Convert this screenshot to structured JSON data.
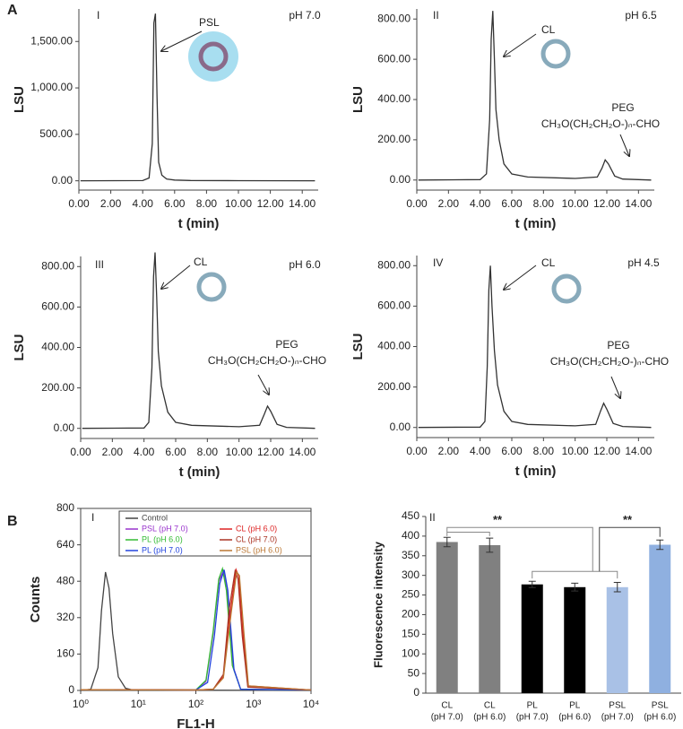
{
  "chart_data": [
    {
      "type": "line",
      "panel_label": "A",
      "panel": "I",
      "condition": "pH 7.0",
      "peak_label": "PSL",
      "y_label": "LSU",
      "x_label": "t (min)",
      "xlim": [
        0,
        15
      ],
      "ylim": [
        -100,
        1850
      ],
      "xticks": [
        {
          "value": 0,
          "label": "0.00"
        },
        {
          "value": 2,
          "label": "2.00"
        },
        {
          "value": 4,
          "label": "4.00"
        },
        {
          "value": 6,
          "label": "6.00"
        },
        {
          "value": 8,
          "label": "8.00"
        },
        {
          "value": 10,
          "label": "10.00"
        },
        {
          "value": 12,
          "label": "12.00"
        },
        {
          "value": 14,
          "label": "14.00"
        }
      ],
      "yticks": [
        {
          "value": 0,
          "label": "0.00"
        },
        {
          "value": 500,
          "label": "500.00"
        },
        {
          "value": 1000,
          "label": "1,000.00"
        },
        {
          "value": 1500,
          "label": "1,500.00"
        }
      ],
      "color": "#333333",
      "x": [
        0.1,
        4.0,
        4.4,
        4.6,
        4.7,
        4.8,
        4.9,
        5.0,
        5.2,
        5.5,
        6.0,
        7.0,
        10.0,
        14.8
      ],
      "values": [
        0,
        2,
        30,
        400,
        1700,
        1800,
        900,
        200,
        60,
        20,
        8,
        3,
        1,
        0
      ]
    },
    {
      "type": "line",
      "panel": "II",
      "condition": "pH 6.5",
      "peak_label": "CL",
      "peg_label": "PEG",
      "formula": "CH₃O(CH₂CH₂O-)ₙ-CHO",
      "y_label": "LSU",
      "x_label": "t (min)",
      "xlim": [
        0,
        15
      ],
      "ylim": [
        -50,
        850
      ],
      "xticks": [
        {
          "value": 0,
          "label": "0.00"
        },
        {
          "value": 2,
          "label": "2.00"
        },
        {
          "value": 4,
          "label": "4.00"
        },
        {
          "value": 6,
          "label": "6.00"
        },
        {
          "value": 8,
          "label": "8.00"
        },
        {
          "value": 10,
          "label": "10.00"
        },
        {
          "value": 12,
          "label": "12.00"
        },
        {
          "value": 14,
          "label": "14.00"
        }
      ],
      "yticks": [
        {
          "value": 0,
          "label": "0.00"
        },
        {
          "value": 200,
          "label": "200.00"
        },
        {
          "value": 400,
          "label": "400.00"
        },
        {
          "value": 600,
          "label": "600.00"
        },
        {
          "value": 800,
          "label": "800.00"
        }
      ],
      "color": "#333333",
      "x": [
        0.1,
        4.0,
        4.4,
        4.6,
        4.7,
        4.8,
        4.9,
        5.0,
        5.2,
        5.5,
        6.0,
        7.0,
        10.0,
        11.4,
        11.7,
        11.9,
        12.1,
        12.5,
        13.0,
        14.8
      ],
      "values": [
        0,
        2,
        30,
        300,
        700,
        840,
        600,
        350,
        200,
        80,
        30,
        15,
        8,
        15,
        60,
        100,
        80,
        20,
        5,
        0
      ]
    },
    {
      "type": "line",
      "panel": "III",
      "condition": "pH 6.0",
      "peak_label": "CL",
      "peg_label": "PEG",
      "formula": "CH₃O(CH₂CH₂O-)ₙ-CHO",
      "y_label": "LSU",
      "x_label": "t (min)",
      "xlim": [
        0,
        15
      ],
      "ylim": [
        -50,
        850
      ],
      "xticks": [
        {
          "value": 0,
          "label": "0.00"
        },
        {
          "value": 2,
          "label": "2.00"
        },
        {
          "value": 4,
          "label": "4.00"
        },
        {
          "value": 6,
          "label": "6.00"
        },
        {
          "value": 8,
          "label": "8.00"
        },
        {
          "value": 10,
          "label": "10.00"
        },
        {
          "value": 12,
          "label": "12.00"
        },
        {
          "value": 14,
          "label": "14.00"
        }
      ],
      "yticks": [
        {
          "value": 0,
          "label": "0.00"
        },
        {
          "value": 200,
          "label": "200.00"
        },
        {
          "value": 400,
          "label": "400.00"
        },
        {
          "value": 600,
          "label": "600.00"
        },
        {
          "value": 800,
          "label": "800.00"
        }
      ],
      "color": "#333333",
      "x": [
        0.1,
        4.0,
        4.3,
        4.5,
        4.6,
        4.7,
        4.8,
        4.9,
        5.1,
        5.5,
        6.0,
        7.0,
        10.0,
        11.3,
        11.6,
        11.8,
        12.0,
        12.4,
        13.0,
        14.8
      ],
      "values": [
        0,
        2,
        30,
        300,
        750,
        870,
        650,
        380,
        210,
        80,
        30,
        15,
        8,
        15,
        70,
        110,
        85,
        20,
        5,
        0
      ]
    },
    {
      "type": "line",
      "panel": "IV",
      "condition": "pH 4.5",
      "peak_label": "CL",
      "peg_label": "PEG",
      "formula": "CH₃O(CH₂CH₂O-)ₙ-CHO",
      "y_label": "LSU",
      "x_label": "t (min)",
      "xlim": [
        0,
        15
      ],
      "ylim": [
        -50,
        850
      ],
      "xticks": [
        {
          "value": 0,
          "label": "0.00"
        },
        {
          "value": 2,
          "label": "2.00"
        },
        {
          "value": 4,
          "label": "4.00"
        },
        {
          "value": 6,
          "label": "6.00"
        },
        {
          "value": 8,
          "label": "8.00"
        },
        {
          "value": 10,
          "label": "10.00"
        },
        {
          "value": 12,
          "label": "12.00"
        },
        {
          "value": 14,
          "label": "14.00"
        }
      ],
      "yticks": [
        {
          "value": 0,
          "label": "0.00"
        },
        {
          "value": 200,
          "label": "200.00"
        },
        {
          "value": 400,
          "label": "400.00"
        },
        {
          "value": 600,
          "label": "600.00"
        },
        {
          "value": 800,
          "label": "800.00"
        }
      ],
      "color": "#333333",
      "x": [
        0.1,
        4.0,
        4.3,
        4.45,
        4.55,
        4.65,
        4.75,
        4.9,
        5.1,
        5.5,
        6.0,
        7.0,
        10.0,
        11.3,
        11.6,
        11.8,
        12.0,
        12.4,
        13.0,
        14.8
      ],
      "values": [
        0,
        2,
        30,
        300,
        680,
        800,
        600,
        380,
        210,
        80,
        30,
        15,
        8,
        15,
        80,
        120,
        90,
        20,
        5,
        0
      ]
    },
    {
      "type": "line",
      "panel_label": "B",
      "panel": "I",
      "x_label": "FL1-H",
      "y_label": "Counts",
      "xscale": "log",
      "xlim": [
        1,
        10000
      ],
      "ylim": [
        0,
        800
      ],
      "xticks": [
        {
          "value": 1,
          "label": "10⁰"
        },
        {
          "value": 10,
          "label": "10¹"
        },
        {
          "value": 100,
          "label": "10²"
        },
        {
          "value": 1000,
          "label": "10³"
        },
        {
          "value": 10000,
          "label": "10⁴"
        }
      ],
      "yticks": [
        0,
        160,
        320,
        480,
        640,
        800
      ],
      "series": [
        {
          "name": "Control",
          "color": "#444444",
          "x": [
            1,
            1.5,
            2,
            2.3,
            2.7,
            3.1,
            3.6,
            4.5,
            6,
            8,
            10000
          ],
          "values": [
            0,
            5,
            100,
            350,
            520,
            450,
            250,
            60,
            10,
            2,
            0
          ]
        },
        {
          "name": "PSL (pH 7.0)",
          "color": "#9933cc",
          "x": [
            1,
            100,
            150,
            200,
            250,
            300,
            350,
            450,
            600,
            10000
          ],
          "values": [
            3,
            2,
            40,
            250,
            480,
            525,
            450,
            100,
            5,
            2
          ]
        },
        {
          "name": "PL (pH 6.0)",
          "color": "#33bb33",
          "x": [
            1,
            100,
            150,
            200,
            250,
            290,
            340,
            430,
            600,
            10000
          ],
          "values": [
            3,
            2,
            45,
            260,
            490,
            535,
            440,
            110,
            5,
            2
          ]
        },
        {
          "name": "PL (pH 7.0)",
          "color": "#2244dd",
          "x": [
            1,
            100,
            160,
            210,
            260,
            310,
            360,
            460,
            600,
            10000
          ],
          "values": [
            3,
            2,
            35,
            240,
            470,
            530,
            440,
            90,
            5,
            2
          ]
        },
        {
          "name": "CL (pH 6.0)",
          "color": "#dd2222",
          "x": [
            1,
            100,
            200,
            300,
            400,
            500,
            560,
            660,
            800,
            10000
          ],
          "values": [
            3,
            2,
            5,
            60,
            350,
            530,
            500,
            250,
            20,
            2
          ]
        },
        {
          "name": "CL (pH 7.0)",
          "color": "#aa3322",
          "x": [
            1,
            100,
            200,
            300,
            380,
            480,
            540,
            640,
            800,
            10000
          ],
          "values": [
            3,
            2,
            5,
            70,
            360,
            525,
            490,
            240,
            15,
            2
          ]
        },
        {
          "name": "PSL (pH 6.0)",
          "color": "#bb7733",
          "x": [
            1,
            100,
            200,
            300,
            410,
            510,
            570,
            680,
            820,
            10000
          ],
          "values": [
            3,
            2,
            5,
            55,
            340,
            520,
            505,
            260,
            20,
            2
          ]
        }
      ]
    },
    {
      "type": "bar",
      "panel": "II",
      "y_label": "Fluorescence intensity",
      "significance": [
        "**",
        "**"
      ],
      "categories": [
        [
          "CL",
          "(pH 7.0)"
        ],
        [
          "CL",
          "(pH 6.0)"
        ],
        [
          "PL",
          "(pH 7.0)"
        ],
        [
          "PL",
          "(pH 6.0)"
        ],
        [
          "PSL",
          "(pH 7.0)"
        ],
        [
          "PSL",
          "(pH 6.0)"
        ]
      ],
      "values": [
        385,
        377,
        277,
        270,
        270,
        378
      ],
      "errors": [
        12,
        18,
        8,
        10,
        12,
        12
      ],
      "colors": [
        "#808080",
        "#808080",
        "#000000",
        "#000000",
        "#a9c1e6",
        "#8fb0e0"
      ],
      "ylim": [
        0,
        450
      ],
      "yticks": [
        0,
        50,
        100,
        150,
        200,
        250,
        300,
        350,
        400,
        450
      ]
    }
  ]
}
